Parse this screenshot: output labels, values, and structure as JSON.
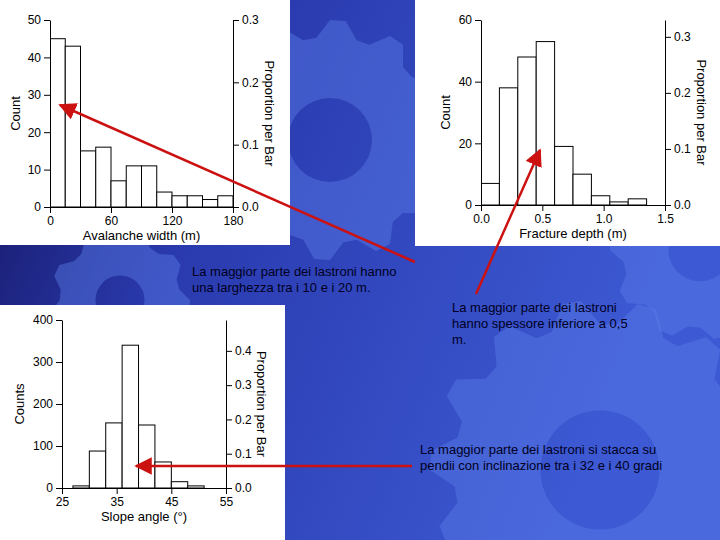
{
  "chart_data": [
    {
      "type": "histogram",
      "xlabel": "Avalanche width (m)",
      "ylabel": "Count",
      "y2label": "Proportion per Bar",
      "bins": [
        0,
        15,
        30,
        45,
        60,
        75,
        90,
        105,
        120,
        135,
        150,
        165,
        180
      ],
      "values": [
        45,
        43,
        15,
        16,
        7,
        11,
        11,
        4,
        3,
        3,
        2,
        3
      ],
      "color": "#ffffff",
      "xlim": [
        0,
        180
      ],
      "xticks": [
        0,
        60,
        120,
        180
      ],
      "ylim": [
        0,
        50
      ],
      "yticks": [
        0,
        10,
        20,
        30,
        40,
        50
      ],
      "y2lim": [
        0,
        0.3
      ],
      "y2ticks": [
        {
          "value": 0,
          "label": "0.0"
        },
        0.1,
        0.2,
        0.3
      ],
      "annotations": [
        "La maggior parte dei lastroni hanno una larghezza tra i 10 e i 20 m."
      ]
    },
    {
      "type": "histogram",
      "xlabel": "Fracture depth (m)",
      "ylabel": "Count",
      "y2label": "Proportion per Bar",
      "bins": [
        0,
        0.15,
        0.3,
        0.45,
        0.6,
        0.75,
        0.9,
        1.05,
        1.2,
        1.35,
        1.5
      ],
      "values": [
        7,
        38,
        48,
        53,
        19,
        10,
        3,
        1,
        2,
        0
      ],
      "color": "#ffffff",
      "xlim": [
        0,
        1.5
      ],
      "xticks": [
        {
          "value": 0,
          "label": "0.0"
        },
        0.5,
        {
          "value": 1,
          "label": "1.0"
        },
        1.5
      ],
      "ylim": [
        0,
        60
      ],
      "yticks": [
        0,
        20,
        40,
        60
      ],
      "y2lim": [
        0,
        0.33
      ],
      "y2ticks": [
        {
          "value": 0,
          "label": "0.0"
        },
        0.1,
        0.2,
        0.3
      ],
      "annotations": [
        "La maggior parte dei lastroni hanno spessore inferiore a 0,5 m."
      ]
    },
    {
      "type": "histogram",
      "xlabel": "Slope angle (°)",
      "ylabel": "Counts",
      "y2label": "Proportion per Bar",
      "bins": [
        27,
        30,
        33,
        36,
        39,
        42,
        45,
        48,
        51
      ],
      "values": [
        5,
        88,
        155,
        340,
        150,
        62,
        15,
        5
      ],
      "color": "#ffffff",
      "xlim": [
        25,
        55
      ],
      "xticks": [
        25,
        35,
        45,
        55
      ],
      "ylim": [
        0,
        400
      ],
      "yticks": [
        0,
        100,
        200,
        300,
        400
      ],
      "y2lim": [
        0,
        0.49
      ],
      "y2ticks": [
        {
          "value": 0,
          "label": "0.0"
        },
        0.1,
        0.2,
        0.3,
        0.4
      ],
      "annotations": [
        "La maggior parte dei lastroni si stacca su pendii con inclinazione tra i 32 e i 40 gradi"
      ]
    }
  ]
}
